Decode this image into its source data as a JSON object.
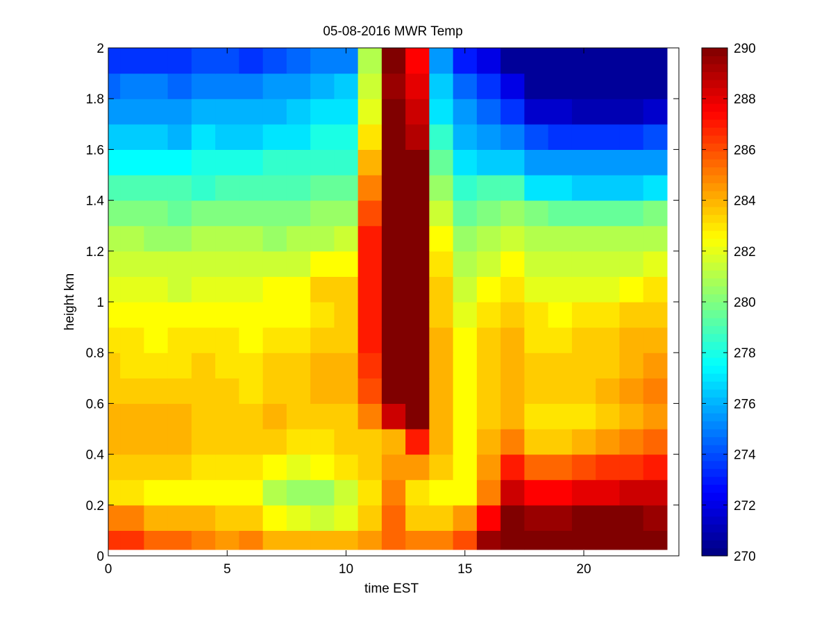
{
  "chart_data": {
    "type": "heatmap",
    "title": "05-08-2016 MWR Temp",
    "xlabel": "time EST",
    "ylabel": "height km",
    "xlim": [
      0,
      24
    ],
    "ylim": [
      0,
      2
    ],
    "xticks": [
      "0",
      "5",
      "10",
      "15",
      "20"
    ],
    "yticks": [
      "0",
      "0.2",
      "0.4",
      "0.6",
      "0.8",
      "1",
      "1.2",
      "1.4",
      "1.6",
      "1.8",
      "2"
    ],
    "colorbar": {
      "colormap": "jet",
      "clim": [
        270,
        290
      ],
      "ticks": [
        "270",
        "272",
        "274",
        "276",
        "278",
        "280",
        "282",
        "284",
        "286",
        "288",
        "290"
      ]
    },
    "x": [
      0,
      1,
      2,
      3,
      4,
      5,
      6,
      7,
      8,
      9,
      10,
      11,
      12,
      13,
      14,
      15,
      16,
      17,
      18,
      19,
      20,
      21,
      22,
      23
    ],
    "heights": [
      0.025,
      0.1,
      0.2,
      0.3,
      0.4,
      0.5,
      0.6,
      0.7,
      0.8,
      0.9,
      1.0,
      1.1,
      1.2,
      1.3,
      1.4,
      1.5,
      1.6,
      1.7,
      1.8,
      1.9,
      2.0
    ],
    "values": [
      [
        286.5,
        286.5,
        285.5,
        285.5,
        285,
        284.5,
        285,
        284,
        284,
        284,
        284,
        284.5,
        285.5,
        285,
        285,
        286,
        289.5,
        290,
        290,
        290,
        290,
        290,
        290,
        290
      ],
      [
        285,
        285,
        284,
        284,
        284,
        283.5,
        283.5,
        282.5,
        282,
        281.5,
        282,
        283.5,
        285.5,
        283.5,
        283.5,
        284.5,
        287.5,
        290,
        289.5,
        289.5,
        290,
        290,
        290,
        289.5
      ],
      [
        283,
        283,
        282.5,
        282.5,
        282.5,
        282.5,
        282.5,
        281,
        280.5,
        280.5,
        281.5,
        283,
        285,
        283,
        282.5,
        282.5,
        285,
        288.5,
        287.5,
        287.5,
        288,
        288,
        288.5,
        288.5
      ],
      [
        283.5,
        283.5,
        283.5,
        283.5,
        283,
        283,
        283,
        282.5,
        282,
        282.5,
        283,
        283.5,
        284.5,
        284.5,
        283.5,
        282.5,
        284.5,
        287,
        285.5,
        285.5,
        286,
        286.5,
        286.5,
        287
      ],
      [
        284,
        284,
        284,
        284,
        283.5,
        283.5,
        283.5,
        283.5,
        283,
        283,
        283.5,
        283.5,
        284,
        287,
        284,
        282.5,
        284,
        285,
        283.5,
        283.5,
        284,
        284.5,
        285,
        285.5
      ],
      [
        284,
        284,
        284,
        284,
        283.5,
        283.5,
        283.5,
        284,
        283.5,
        283.5,
        283.5,
        285,
        288.5,
        290,
        284,
        282.5,
        283.5,
        284,
        283,
        283,
        283,
        283.5,
        284,
        284.5
      ],
      [
        283.5,
        283.5,
        283.5,
        283.5,
        283.5,
        283.5,
        283,
        283.5,
        283.5,
        284,
        284,
        286,
        290,
        290,
        284,
        282.5,
        283.5,
        284,
        283.5,
        283.5,
        283.5,
        284,
        284.5,
        285
      ],
      [
        283.5,
        283,
        283,
        283,
        283.5,
        283,
        283,
        283.5,
        283.5,
        284,
        284,
        286.5,
        290,
        290,
        284,
        282.5,
        283.5,
        284,
        283.5,
        283.5,
        283.5,
        283.5,
        284,
        284.5
      ],
      [
        283,
        283,
        282.5,
        283,
        283,
        283,
        282.5,
        283,
        283,
        283.5,
        283.5,
        287,
        290,
        290,
        284,
        282.5,
        283.5,
        284,
        283,
        283,
        283.5,
        283.5,
        284,
        284
      ],
      [
        282.5,
        282.5,
        282.5,
        282.5,
        282.5,
        282.5,
        282.5,
        282.5,
        282.5,
        283,
        283.5,
        287,
        290,
        290,
        283.5,
        282,
        283,
        283.5,
        283,
        282.5,
        283,
        283,
        283.5,
        283.5
      ],
      [
        282,
        282,
        282,
        281.5,
        282,
        282,
        282,
        282.5,
        282.5,
        283.5,
        283.5,
        287,
        290,
        290,
        283.5,
        281.5,
        282.5,
        283,
        282,
        282,
        282,
        282,
        282.5,
        283
      ],
      [
        281.5,
        281.5,
        281.5,
        281.5,
        281.5,
        281.5,
        281.5,
        281.5,
        281.5,
        282.5,
        282.5,
        287,
        290,
        290,
        283,
        281,
        281.5,
        282.5,
        281.5,
        281.5,
        281.5,
        281.5,
        281.5,
        282
      ],
      [
        281,
        281,
        280.5,
        280.5,
        281,
        281,
        281,
        280.5,
        281,
        281,
        281.5,
        287,
        290,
        290,
        282.5,
        280.5,
        281,
        281.5,
        281,
        281,
        281,
        281,
        281,
        281
      ],
      [
        280,
        280,
        280,
        279.5,
        280,
        280,
        280,
        280,
        280,
        280.5,
        280.5,
        286,
        290,
        290,
        281.5,
        279.5,
        280,
        280.5,
        280,
        279.5,
        279.5,
        279.5,
        279.5,
        280
      ],
      [
        279,
        279,
        279,
        279,
        278.5,
        279,
        279,
        279,
        279,
        279.5,
        279.5,
        285,
        290,
        290,
        280.5,
        278.5,
        279,
        279,
        277,
        277,
        276.5,
        276.5,
        276.5,
        277
      ],
      [
        277.5,
        277.5,
        277.5,
        277.5,
        278,
        278,
        278,
        278.5,
        278.5,
        278.5,
        278.5,
        284,
        290,
        290,
        279.5,
        277,
        276.5,
        276.5,
        275.5,
        275.5,
        275.5,
        275.5,
        275.5,
        275.5
      ],
      [
        276.5,
        276.5,
        276.5,
        276,
        277,
        276.5,
        276.5,
        277,
        277,
        278,
        278,
        283,
        290,
        289,
        278.5,
        276,
        275.5,
        275,
        274,
        273.5,
        273.5,
        273.5,
        273.5,
        274
      ],
      [
        275.5,
        275.5,
        275.5,
        275.5,
        276,
        276,
        276,
        276,
        276.5,
        277,
        277,
        282,
        290,
        288.5,
        277,
        275.5,
        274.5,
        273.5,
        271.5,
        271.5,
        271,
        271,
        271,
        271.5
      ],
      [
        274.5,
        275,
        275,
        274.5,
        275,
        275,
        275,
        275.5,
        275.5,
        276,
        276.5,
        281.5,
        289.5,
        288,
        276.5,
        274.5,
        273.5,
        272,
        270.5,
        270.5,
        270.5,
        270.5,
        270.5,
        270.5
      ],
      [
        273.5,
        273.5,
        273.5,
        273.5,
        274,
        274,
        273.5,
        274,
        274.5,
        275,
        275,
        281,
        290,
        287.5,
        275.5,
        273,
        272,
        270.5,
        270.5,
        270.5,
        270.5,
        270.5,
        270.5,
        270.5
      ],
      [
        273,
        273,
        273,
        273,
        273.5,
        273,
        273,
        273,
        273.5,
        274,
        274,
        280.5,
        288.5,
        286.5,
        275,
        272.5,
        271,
        270.5,
        270.5,
        270.5,
        270.5,
        270.5,
        270.5,
        270.5
      ]
    ]
  }
}
